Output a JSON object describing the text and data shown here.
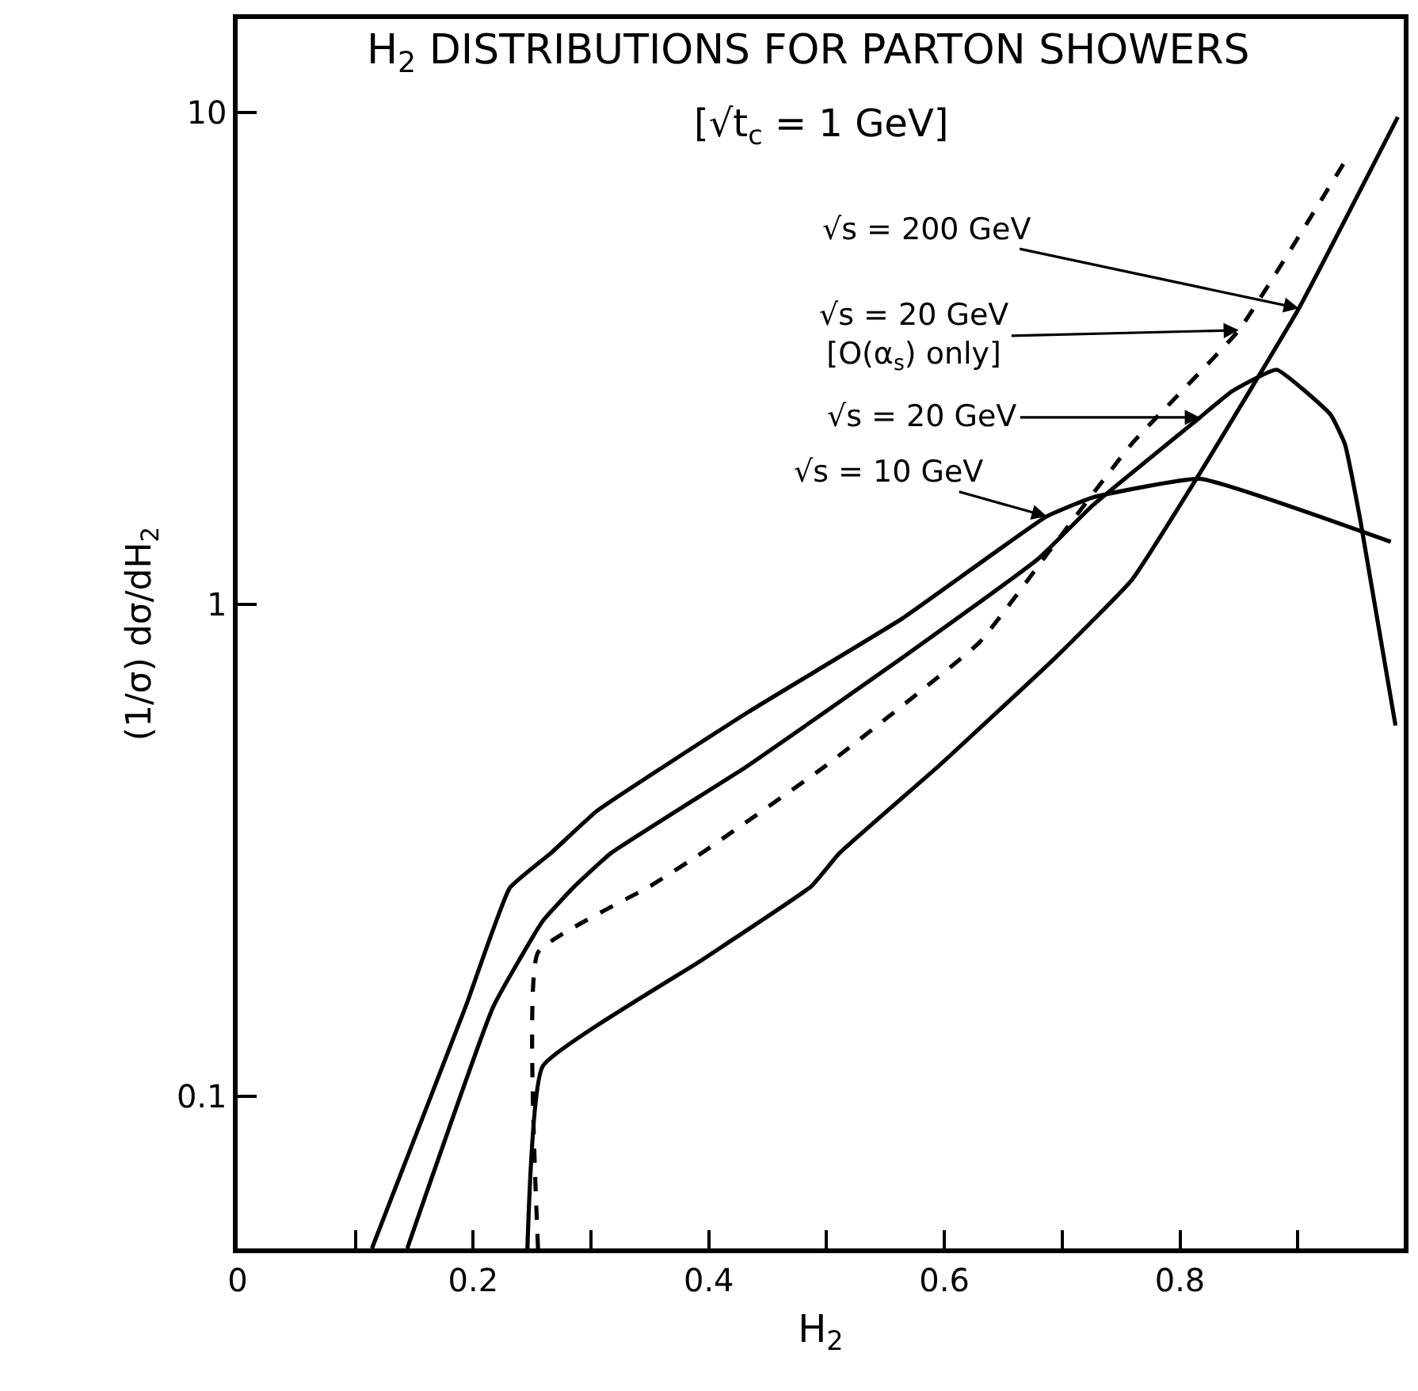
{
  "chart_data": {
    "type": "line",
    "title": "H$_{2}$ DISTRIBUTIONS FOR PARTON SHOWERS",
    "subtitle": "[√t$_{c}$ = 1 GeV]",
    "xlabel": "H$_{2}$",
    "ylabel": "(1/σ) dσ/dH$_{2}$",
    "log": "y",
    "marker": "none",
    "xlim": [
      0,
      0.99
    ],
    "xticks": [
      0,
      {
        "value": 0.1,
        "label": null
      },
      0.2,
      {
        "value": 0.3,
        "label": null
      },
      0.4,
      {
        "value": 0.5,
        "label": null
      },
      0.6,
      {
        "value": 0.7,
        "label": null
      },
      0.8,
      {
        "value": 0.9,
        "label": null
      }
    ],
    "ylim": [
      0.049,
      15.5
    ],
    "yticks": [
      0.1,
      1,
      10
    ],
    "series": [
      {
        "color": "#000000",
        "line_style": "solid",
        "x": [
          0.114,
          0.194,
          0.231,
          0.266,
          0.305,
          0.434,
          0.564,
          0.687,
          0.726,
          0.817,
          0.979
        ],
        "values": [
          0.049,
          0.153,
          0.265,
          0.312,
          0.38,
          0.605,
          0.935,
          1.51,
          1.65,
          1.8,
          1.34
        ]
      },
      {
        "color": "#000000",
        "line_style": "solid",
        "x": [
          0.144,
          0.217,
          0.259,
          0.286,
          0.317,
          0.434,
          0.564,
          0.68,
          0.726,
          0.817,
          0.844,
          0.882,
          0.928,
          0.94,
          0.953,
          0.983
        ],
        "values": [
          0.049,
          0.152,
          0.227,
          0.267,
          0.312,
          0.471,
          0.778,
          1.24,
          1.59,
          2.4,
          2.71,
          3.0,
          2.43,
          2.12,
          1.49,
          0.567
        ]
      },
      {
        "color": "#000000",
        "line_style": "dashed",
        "x": [
          0.255,
          0.255,
          0.35,
          0.394,
          0.5,
          0.63,
          0.694,
          0.759,
          0.85,
          0.94
        ],
        "values": [
          0.049,
          0.196,
          0.267,
          0.312,
          0.471,
          0.838,
          1.33,
          2.12,
          3.61,
          7.95
        ]
      },
      {
        "color": "#000000",
        "line_style": "solid",
        "x": [
          0.246,
          0.259,
          0.394,
          0.487,
          0.511,
          0.596,
          0.694,
          0.759,
          0.817,
          0.901,
          0.985
        ],
        "values": [
          0.049,
          0.115,
          0.189,
          0.267,
          0.312,
          0.471,
          0.778,
          1.12,
          1.85,
          4.0,
          9.8
        ]
      }
    ],
    "annotations": [
      {
        "text": "√s = 200 GeV",
        "x": 0.901,
        "y": 4.0
      },
      {
        "text": "√s = 20 GeV\n[O(α$_{s}$) only]",
        "x": 0.85,
        "y": 3.61
      },
      {
        "text": "√s = 20 GeV",
        "x": 0.817,
        "y": 2.4
      },
      {
        "text": "√s = 10 GeV",
        "x": 0.687,
        "y": 1.51
      }
    ]
  }
}
